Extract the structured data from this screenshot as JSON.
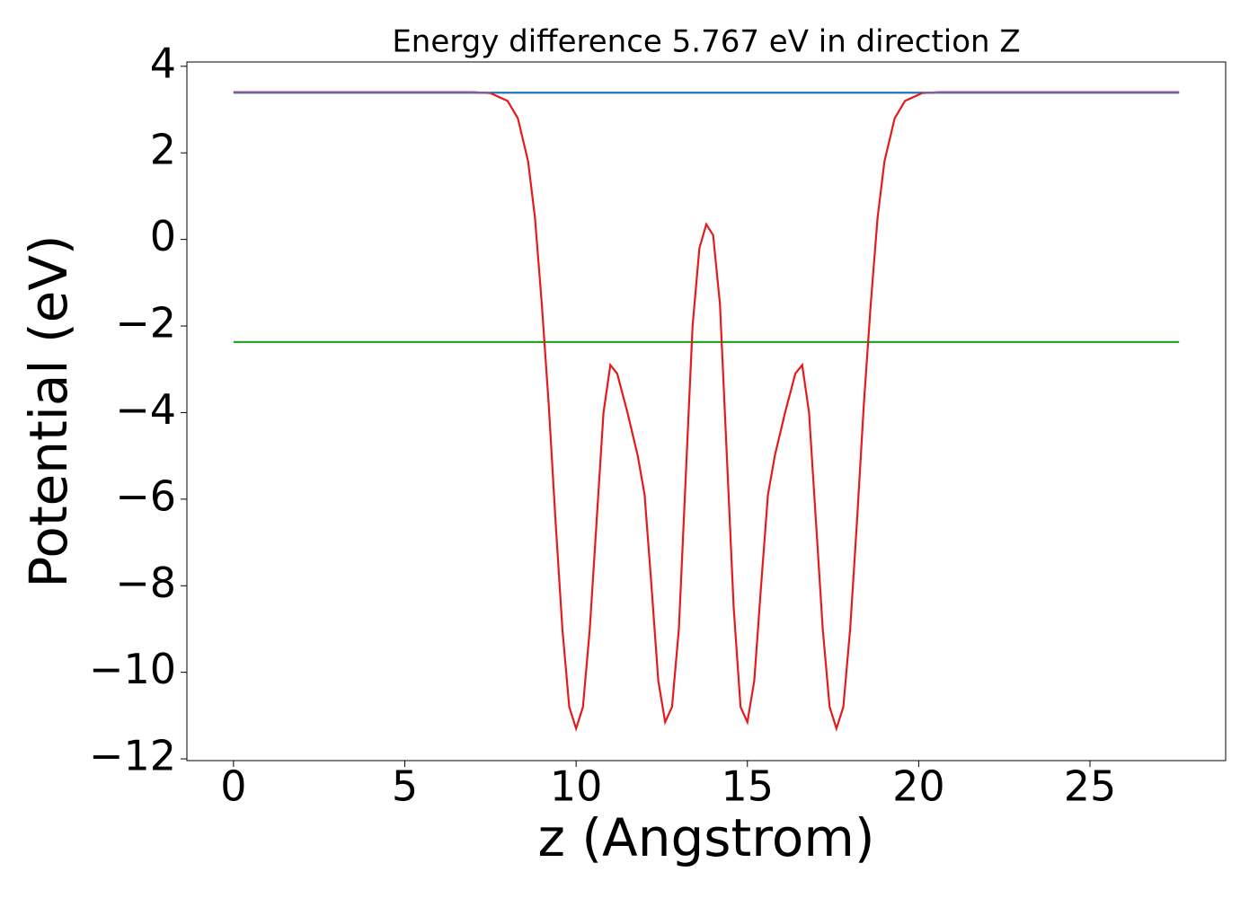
{
  "chart_data": {
    "type": "line",
    "title": "Energy difference 5.767 eV in direction Z",
    "xlabel": "z (Angstrom)",
    "ylabel": "Potential (eV)",
    "xlim": [
      -1.36,
      28.96
    ],
    "ylim": [
      -12.04,
      4.1
    ],
    "xticks": [
      0,
      5,
      10,
      15,
      20,
      25
    ],
    "yticks": [
      {
        "value": -12,
        "label": "−12"
      },
      {
        "value": -10,
        "label": "−10"
      },
      {
        "value": -8,
        "label": "−8"
      },
      {
        "value": -6,
        "label": "−6"
      },
      {
        "value": -4,
        "label": "−4"
      },
      {
        "value": -2,
        "label": "−2"
      },
      0,
      2,
      4
    ],
    "series": [
      {
        "color": "#1f77b4",
        "x": [
          0,
          27.6
        ],
        "values": [
          3.39,
          3.39
        ]
      },
      {
        "color": "#2ca02c",
        "x": [
          0,
          27.6
        ],
        "values": [
          -2.37,
          -2.37
        ]
      },
      {
        "color": "#e41a1c",
        "x": [
          0,
          7,
          7.5,
          8,
          8.3,
          8.6,
          8.8,
          9.0,
          9.2,
          9.4,
          9.6,
          9.8,
          10.0,
          10.2,
          10.4,
          10.6,
          10.8,
          11.0,
          11.2,
          11.5,
          11.8,
          12.0,
          12.2,
          12.4,
          12.6,
          12.8,
          13.0,
          13.2,
          13.4,
          13.6,
          13.8,
          14.0,
          14.2,
          14.4,
          14.6,
          14.8,
          15.0,
          15.2,
          15.4,
          15.6,
          15.8,
          16.1,
          16.4,
          16.6,
          16.8,
          17.0,
          17.2,
          17.4,
          17.6,
          17.8,
          18.0,
          18.2,
          18.4,
          18.6,
          18.8,
          19.0,
          19.3,
          19.6,
          20.1,
          20.6,
          27.6
        ],
        "values": [
          3.4,
          3.4,
          3.38,
          3.2,
          2.8,
          1.8,
          0.5,
          -1.5,
          -3.8,
          -6.5,
          -9,
          -10.8,
          -11.3,
          -10.8,
          -9,
          -6.5,
          -4,
          -2.9,
          -3.1,
          -4,
          -5,
          -5.9,
          -8,
          -10.2,
          -11.15,
          -10.8,
          -9,
          -5.5,
          -2,
          -0.2,
          0.35,
          0.1,
          -1.5,
          -5,
          -8.5,
          -10.8,
          -11.15,
          -10.2,
          -8,
          -5.9,
          -5,
          -4,
          -3.1,
          -2.9,
          -4,
          -6.5,
          -9,
          -10.8,
          -11.3,
          -10.8,
          -9,
          -6.5,
          -3.8,
          -1.5,
          0.5,
          1.8,
          2.8,
          3.2,
          3.38,
          3.4,
          3.4
        ]
      },
      {
        "color": "#7b5ea7",
        "x": [
          0,
          7,
          7.5,
          null,
          20.1,
          20.6,
          27.6
        ],
        "values": [
          3.4,
          3.4,
          3.38,
          null,
          3.38,
          3.4,
          3.4
        ]
      }
    ]
  }
}
